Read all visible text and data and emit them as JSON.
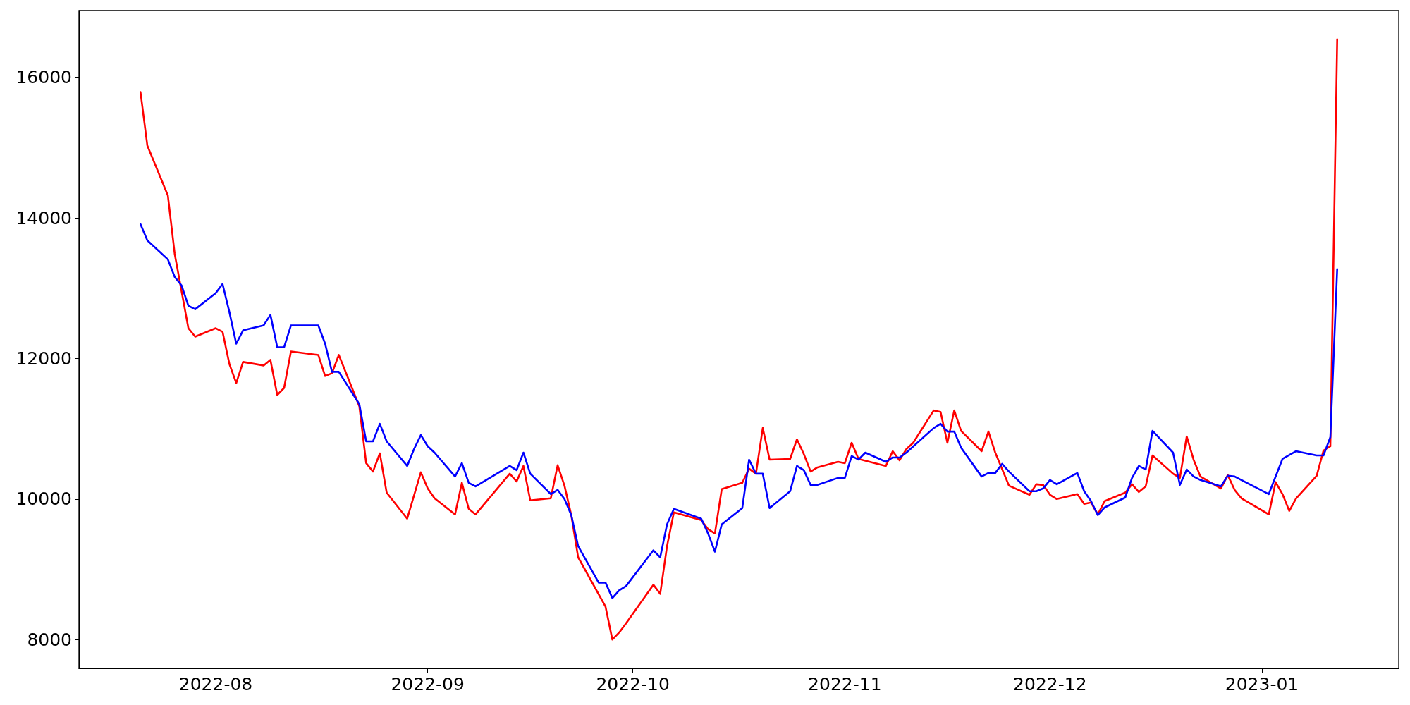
{
  "chart_data": {
    "type": "line",
    "xlim": [
      "2022-07-12",
      "2023-01-21"
    ],
    "xticks": [
      "2022-08",
      "2022-09",
      "2022-10",
      "2022-11",
      "2022-12",
      "2023-01"
    ],
    "ylim": [
      7590,
      16950
    ],
    "yticks": [
      8000,
      10000,
      12000,
      14000,
      16000
    ],
    "grid": false,
    "marker": "none",
    "line_style": "solid",
    "series": [
      {
        "color": "#ff0000",
        "x": [
          "2022-07-21",
          "2022-07-22",
          "2022-07-25",
          "2022-07-26",
          "2022-07-28",
          "2022-07-29",
          "2022-08-01",
          "2022-08-02",
          "2022-08-03",
          "2022-08-04",
          "2022-08-05",
          "2022-08-08",
          "2022-08-09",
          "2022-08-10",
          "2022-08-11",
          "2022-08-12",
          "2022-08-16",
          "2022-08-17",
          "2022-08-18",
          "2022-08-19",
          "2022-08-22",
          "2022-08-23",
          "2022-08-24",
          "2022-08-25",
          "2022-08-26",
          "2022-08-29",
          "2022-08-31",
          "2022-09-01",
          "2022-09-02",
          "2022-09-05",
          "2022-09-06",
          "2022-09-07",
          "2022-09-08",
          "2022-09-13",
          "2022-09-14",
          "2022-09-15",
          "2022-09-16",
          "2022-09-19",
          "2022-09-20",
          "2022-09-21",
          "2022-09-22",
          "2022-09-23",
          "2022-09-27",
          "2022-09-28",
          "2022-09-29",
          "2022-09-30",
          "2022-10-04",
          "2022-10-05",
          "2022-10-06",
          "2022-10-07",
          "2022-10-11",
          "2022-10-12",
          "2022-10-13",
          "2022-10-14",
          "2022-10-17",
          "2022-10-18",
          "2022-10-19",
          "2022-10-20",
          "2022-10-21",
          "2022-10-24",
          "2022-10-25",
          "2022-10-26",
          "2022-10-27",
          "2022-10-28",
          "2022-10-31",
          "2022-11-01",
          "2022-11-02",
          "2022-11-03",
          "2022-11-07",
          "2022-11-08",
          "2022-11-09",
          "2022-11-10",
          "2022-11-11",
          "2022-11-14",
          "2022-11-15",
          "2022-11-16",
          "2022-11-17",
          "2022-11-18",
          "2022-11-21",
          "2022-11-22",
          "2022-11-23",
          "2022-11-25",
          "2022-11-28",
          "2022-11-29",
          "2022-11-30",
          "2022-12-01",
          "2022-12-02",
          "2022-12-05",
          "2022-12-06",
          "2022-12-07",
          "2022-12-08",
          "2022-12-09",
          "2022-12-12",
          "2022-12-13",
          "2022-12-14",
          "2022-12-15",
          "2022-12-16",
          "2022-12-19",
          "2022-12-20",
          "2022-12-21",
          "2022-12-22",
          "2022-12-23",
          "2022-12-26",
          "2022-12-27",
          "2022-12-28",
          "2022-12-29",
          "2023-01-02",
          "2023-01-03",
          "2023-01-04",
          "2023-01-05",
          "2023-01-06",
          "2023-01-09",
          "2023-01-10",
          "2023-01-11",
          "2023-01-12"
        ],
        "values": [
          15790,
          15030,
          14320,
          13490,
          12430,
          12310,
          12430,
          12380,
          11920,
          11650,
          11950,
          11900,
          11980,
          11480,
          11580,
          12100,
          12050,
          11750,
          11790,
          12050,
          11320,
          10510,
          10390,
          10650,
          10090,
          9720,
          10380,
          10150,
          10010,
          9780,
          10230,
          9860,
          9780,
          10360,
          10250,
          10470,
          9980,
          10010,
          10480,
          10190,
          9770,
          9170,
          8470,
          8000,
          8100,
          8230,
          8780,
          8650,
          9330,
          9810,
          9700,
          9570,
          9510,
          10140,
          10230,
          10430,
          10360,
          11010,
          10560,
          10570,
          10850,
          10640,
          10390,
          10450,
          10530,
          10510,
          10800,
          10570,
          10470,
          10680,
          10550,
          10710,
          10800,
          11260,
          11240,
          10800,
          11260,
          10970,
          10680,
          10960,
          10660,
          10190,
          10060,
          10210,
          10200,
          10060,
          10000,
          10070,
          9930,
          9950,
          9780,
          9970,
          10090,
          10210,
          10100,
          10180,
          10620,
          10360,
          10300,
          10890,
          10560,
          10320,
          10150,
          10340,
          10130,
          10010,
          9780,
          10240,
          10070,
          9830,
          10010,
          10330,
          10690,
          10750,
          16540
        ]
      },
      {
        "color": "#0000ff",
        "x": [
          "2022-07-21",
          "2022-07-22",
          "2022-07-25",
          "2022-07-26",
          "2022-07-27",
          "2022-07-28",
          "2022-07-29",
          "2022-08-01",
          "2022-08-02",
          "2022-08-03",
          "2022-08-04",
          "2022-08-05",
          "2022-08-08",
          "2022-08-09",
          "2022-08-10",
          "2022-08-11",
          "2022-08-12",
          "2022-08-16",
          "2022-08-17",
          "2022-08-18",
          "2022-08-19",
          "2022-08-22",
          "2022-08-23",
          "2022-08-24",
          "2022-08-25",
          "2022-08-26",
          "2022-08-29",
          "2022-08-30",
          "2022-08-31",
          "2022-09-01",
          "2022-09-02",
          "2022-09-05",
          "2022-09-06",
          "2022-09-07",
          "2022-09-08",
          "2022-09-13",
          "2022-09-14",
          "2022-09-15",
          "2022-09-16",
          "2022-09-19",
          "2022-09-20",
          "2022-09-21",
          "2022-09-22",
          "2022-09-23",
          "2022-09-26",
          "2022-09-27",
          "2022-09-28",
          "2022-09-29",
          "2022-09-30",
          "2022-10-04",
          "2022-10-05",
          "2022-10-06",
          "2022-10-07",
          "2022-10-11",
          "2022-10-12",
          "2022-10-13",
          "2022-10-14",
          "2022-10-17",
          "2022-10-18",
          "2022-10-19",
          "2022-10-20",
          "2022-10-21",
          "2022-10-24",
          "2022-10-25",
          "2022-10-26",
          "2022-10-27",
          "2022-10-28",
          "2022-10-31",
          "2022-11-01",
          "2022-11-02",
          "2022-11-03",
          "2022-11-04",
          "2022-11-07",
          "2022-11-08",
          "2022-11-09",
          "2022-11-10",
          "2022-11-14",
          "2022-11-15",
          "2022-11-16",
          "2022-11-17",
          "2022-11-18",
          "2022-11-21",
          "2022-11-22",
          "2022-11-23",
          "2022-11-24",
          "2022-11-25",
          "2022-11-28",
          "2022-11-29",
          "2022-11-30",
          "2022-12-01",
          "2022-12-02",
          "2022-12-05",
          "2022-12-06",
          "2022-12-07",
          "2022-12-08",
          "2022-12-09",
          "2022-12-12",
          "2022-12-13",
          "2022-12-14",
          "2022-12-15",
          "2022-12-16",
          "2022-12-19",
          "2022-12-20",
          "2022-12-21",
          "2022-12-22",
          "2022-12-23",
          "2022-12-26",
          "2022-12-27",
          "2022-12-28",
          "2023-01-02",
          "2023-01-04",
          "2023-01-06",
          "2023-01-09",
          "2023-01-10",
          "2023-01-11",
          "2023-01-12"
        ],
        "values": [
          13910,
          13680,
          13410,
          13160,
          13040,
          12750,
          12700,
          12930,
          13060,
          12660,
          12210,
          12400,
          12470,
          12620,
          12160,
          12160,
          12470,
          12470,
          12210,
          11810,
          11810,
          11350,
          10820,
          10820,
          11070,
          10820,
          10470,
          10710,
          10910,
          10750,
          10660,
          10320,
          10510,
          10230,
          10180,
          10470,
          10410,
          10660,
          10360,
          10070,
          10130,
          10000,
          9770,
          9330,
          8810,
          8810,
          8590,
          8700,
          8760,
          9270,
          9170,
          9640,
          9860,
          9720,
          9510,
          9250,
          9640,
          9870,
          10560,
          10360,
          10360,
          9870,
          10110,
          10470,
          10410,
          10200,
          10200,
          10300,
          10300,
          10610,
          10560,
          10660,
          10530,
          10590,
          10590,
          10660,
          11010,
          11070,
          10960,
          10960,
          10730,
          10320,
          10370,
          10370,
          10500,
          10390,
          10110,
          10110,
          10150,
          10270,
          10210,
          10370,
          10110,
          9970,
          9770,
          9880,
          10020,
          10300,
          10470,
          10420,
          10970,
          10660,
          10200,
          10420,
          10320,
          10270,
          10180,
          10330,
          10320,
          10070,
          10570,
          10680,
          10620,
          10620,
          10880,
          13270
        ]
      }
    ]
  }
}
